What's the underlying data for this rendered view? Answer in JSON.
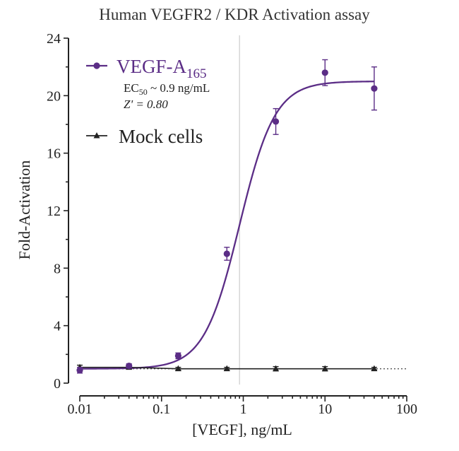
{
  "chart_data": {
    "type": "line",
    "title": "Human VEGFR2 / KDR Activation assay",
    "xlabel": "[VEGF], ng/mL",
    "ylabel": "Fold-Activation",
    "xscale": "log",
    "xlim": [
      0.01,
      100
    ],
    "ylim": [
      0,
      24
    ],
    "x_ticks": [
      0.01,
      0.1,
      1,
      10,
      100
    ],
    "x_tick_labels": [
      "0.01",
      "0.1",
      "1",
      "10",
      "100"
    ],
    "y_ticks": [
      0,
      4,
      8,
      12,
      16,
      20,
      24
    ],
    "y_tick_labels": [
      "0",
      "4",
      "8",
      "12",
      "16",
      "20",
      "24"
    ],
    "vertical_reference_line_x": 0.9,
    "grid": false,
    "legend_position": "top-left",
    "series": [
      {
        "name": "VEGF-A165",
        "legend_label": {
          "main": "VEGF-A",
          "subscript": "165"
        },
        "color": "#5b2d86",
        "marker": "circle",
        "x": [
          0.01,
          0.04,
          0.16,
          0.63,
          2.5,
          10,
          40
        ],
        "y": [
          0.9,
          1.2,
          1.9,
          9.0,
          18.2,
          21.6,
          20.5
        ],
        "error": [
          0.2,
          0.15,
          0.2,
          0.45,
          0.9,
          0.9,
          1.5
        ],
        "fit": {
          "bottom": 1.0,
          "top": 21.0,
          "ec50": 0.9,
          "hill": 2.0
        },
        "annotations": [
          {
            "prefix": "EC",
            "subscript": "50",
            "suffix": " ~ 0.9 ng/mL"
          },
          {
            "prefix": "Z' = 0.80"
          }
        ]
      },
      {
        "name": "Mock cells",
        "color": "#222222",
        "marker": "triangle",
        "x": [
          0.01,
          0.04,
          0.16,
          0.63,
          2.5,
          10,
          40
        ],
        "y": [
          1.1,
          1.1,
          1.0,
          1.0,
          1.0,
          1.0,
          1.0
        ],
        "error": [
          0.15,
          0.1,
          0.1,
          0.1,
          0.15,
          0.15,
          0.1
        ]
      }
    ]
  }
}
